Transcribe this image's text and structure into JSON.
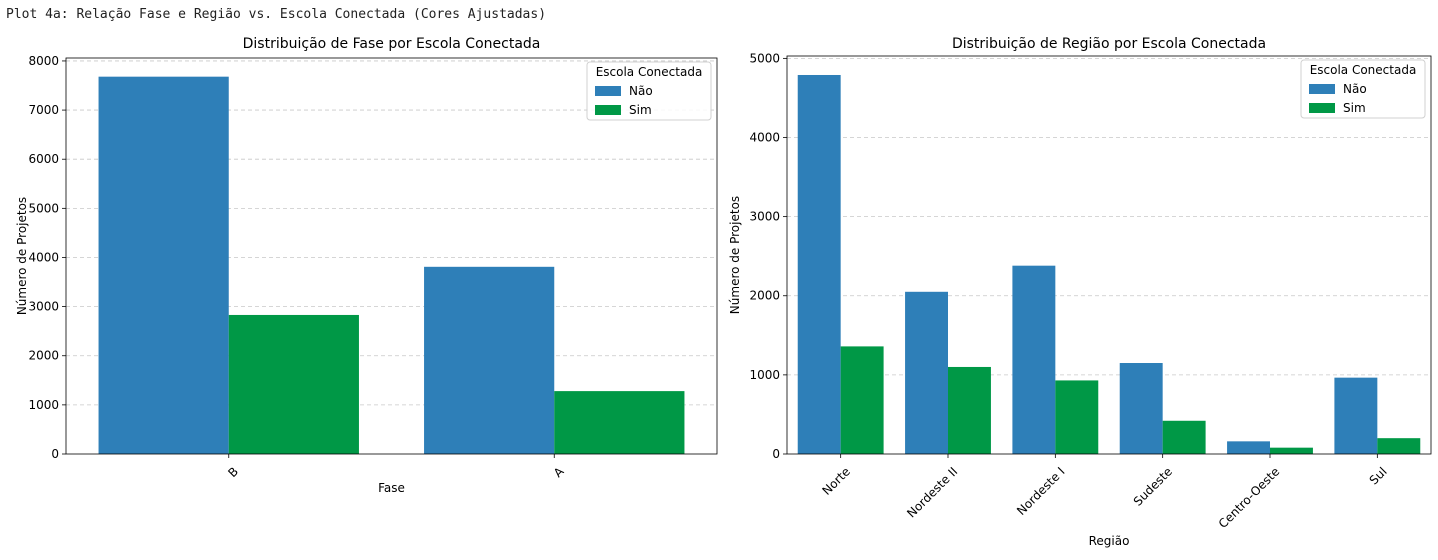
{
  "header": {
    "text": "Plot 4a: Relação Fase e Região vs. Escola Conectada (Cores Ajustadas)"
  },
  "colors": {
    "nao": "#2e7fb8",
    "sim": "#009846"
  },
  "chart_data": [
    {
      "type": "bar",
      "title": "Distribuição de Fase por Escola Conectada",
      "xlabel": "Fase",
      "ylabel": "Número de Projetos",
      "categories": [
        "B",
        "A"
      ],
      "series": [
        {
          "name": "Não",
          "values": [
            7680,
            3810
          ]
        },
        {
          "name": "Sim",
          "values": [
            2830,
            1280
          ]
        }
      ],
      "yticks": [
        0,
        1000,
        2000,
        3000,
        4000,
        5000,
        6000,
        7000,
        8000
      ],
      "ylim": [
        0,
        8060
      ],
      "grid": "y",
      "legend": {
        "title": "Escola Conectada",
        "placement": "top-right"
      }
    },
    {
      "type": "bar",
      "title": "Distribuição de Região por Escola Conectada",
      "xlabel": "Região",
      "ylabel": "Número de Projetos",
      "categories": [
        "Norte",
        "Nordeste II",
        "Nordeste I",
        "Sudeste",
        "Centro-Oeste",
        "Sul"
      ],
      "series": [
        {
          "name": "Não",
          "values": [
            4790,
            2050,
            2380,
            1150,
            160,
            965
          ]
        },
        {
          "name": "Sim",
          "values": [
            1360,
            1100,
            930,
            420,
            80,
            200
          ]
        }
      ],
      "yticks": [
        0,
        1000,
        2000,
        3000,
        4000,
        5000
      ],
      "ylim": [
        0,
        5030
      ],
      "grid": "y",
      "legend": {
        "title": "Escola Conectada",
        "placement": "top-right"
      }
    }
  ]
}
